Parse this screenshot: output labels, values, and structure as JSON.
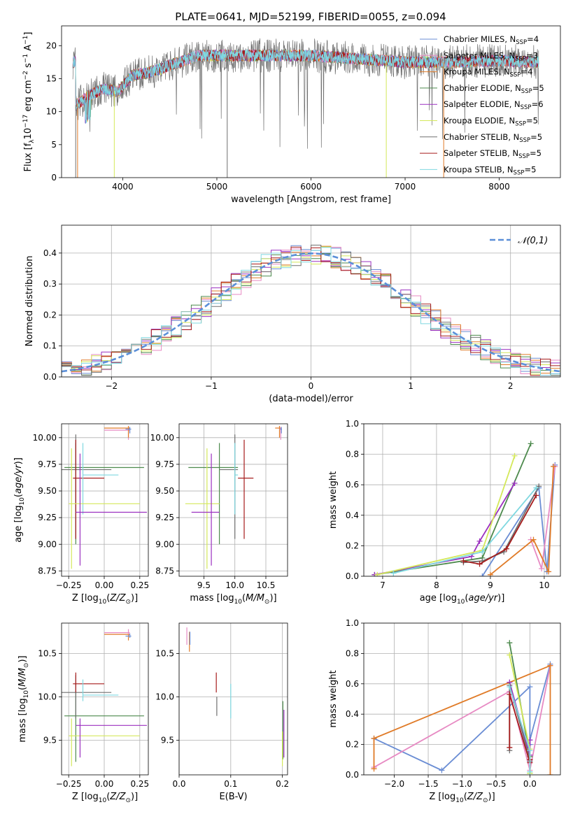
{
  "figure_title": "PLATE=0641, MJD=52199, FIBERID=0055, z=0.094",
  "colors": {
    "Chabrier MILES": "#6a8dd4",
    "Salpeter MILES": "#e78ac3",
    "Kroupa MILES": "#e07b28",
    "Chabrier ELODIE": "#4d8a4d",
    "Salpeter ELODIE": "#9b30c0",
    "Kroupa ELODIE": "#d4e85a",
    "Chabrier STELIB": "#707070",
    "Salpeter STELIB": "#a61c1c",
    "Kroupa STELIB": "#7fd8e0"
  },
  "chart_data": [
    {
      "id": "spectrum",
      "type": "line",
      "xlabel": "wavelength [Angstrom, rest frame]",
      "ylabel": "Flux [f_λ 10^-17 erg cm^-2 s^-1 A^-1]",
      "xlim": [
        3350,
        8650
      ],
      "ylim": [
        0,
        23
      ],
      "xticks": [
        4000,
        5000,
        6000,
        7000,
        8000
      ],
      "yticks": [
        0,
        5,
        10,
        15,
        20
      ],
      "legend_position": "right",
      "legend": [
        {
          "prefix": "Chabrier MILES, N",
          "sub": "SSP",
          "suffix": "=4"
        },
        {
          "prefix": "Salpeter MILES, N",
          "sub": "SSP",
          "suffix": "=3"
        },
        {
          "prefix": "Kroupa MILES, N",
          "sub": "SSP",
          "suffix": "=4"
        },
        {
          "prefix": "Chabrier ELODIE, N",
          "sub": "SSP",
          "suffix": "=5"
        },
        {
          "prefix": "Salpeter ELODIE, N",
          "sub": "SSP",
          "suffix": "=6"
        },
        {
          "prefix": "Kroupa ELODIE, N",
          "sub": "SSP",
          "suffix": "=5"
        },
        {
          "prefix": "Chabrier STELIB, N",
          "sub": "SSP",
          "suffix": "=5"
        },
        {
          "prefix": "Salpeter STELIB, N",
          "sub": "SSP",
          "suffix": "=5"
        },
        {
          "prefix": "Kroupa STELIB, N",
          "sub": "SSP",
          "suffix": "=5"
        }
      ],
      "continuum": [
        [
          3500,
          11
        ],
        [
          3650,
          12.5
        ],
        [
          3800,
          13.5
        ],
        [
          3950,
          13
        ],
        [
          4100,
          15.5
        ],
        [
          4300,
          16
        ],
        [
          4500,
          17
        ],
        [
          4800,
          18.5
        ],
        [
          5100,
          18.5
        ],
        [
          5500,
          18.5
        ],
        [
          6000,
          18.5
        ],
        [
          6500,
          18
        ],
        [
          7000,
          17.5
        ],
        [
          7500,
          17.5
        ],
        [
          8000,
          17.8
        ],
        [
          8300,
          17.5
        ]
      ]
    },
    {
      "id": "residuals",
      "type": "line",
      "xlabel": "(data-model)/error",
      "ylabel": "Normed distribution",
      "xlim": [
        -2.5,
        2.5
      ],
      "ylim": [
        0,
        0.49
      ],
      "xticks": [
        -2,
        -1,
        0,
        1,
        2
      ],
      "yticks": [
        0.0,
        0.1,
        0.2,
        0.3,
        0.4
      ],
      "grid": true,
      "legend_position": "top-right",
      "reference_curve": "𝒩(0,1)"
    },
    {
      "id": "age_vs_Z",
      "type": "scatter",
      "xlabel": "Z [log10(Z/Z☉)]",
      "ylabel": "age [log10(age/yr)]",
      "xlim": [
        -0.3,
        0.31
      ],
      "ylim": [
        8.7,
        10.13
      ],
      "xticks": [
        -0.25,
        0.0,
        0.25
      ],
      "yticks": [
        8.75,
        9.0,
        9.25,
        9.5,
        9.75,
        10.0
      ],
      "points": [
        {
          "s": "Salpeter MILES",
          "x": 0.17,
          "y": 10.07,
          "xe": [
            0.0,
            0.18
          ],
          "ye": [
            9.98,
            10.1
          ]
        },
        {
          "s": "Kroupa MILES",
          "x": 0.17,
          "y": 10.09,
          "xe": [
            0.0,
            0.18
          ],
          "ye": [
            10.0,
            10.11
          ]
        },
        {
          "s": "Chabrier MILES",
          "x": 0.18,
          "y": 10.08,
          "xe": [
            0.15,
            0.19
          ],
          "ye": [
            10.04,
            10.1
          ]
        },
        {
          "s": "Chabrier ELODIE",
          "x": -0.2,
          "y": 9.72,
          "xe": [
            -0.28,
            0.28
          ],
          "ye": [
            9.0,
            9.95
          ]
        },
        {
          "s": "Chabrier STELIB",
          "x": -0.2,
          "y": 9.7,
          "xe": [
            -0.3,
            0.05
          ],
          "ye": [
            9.05,
            10.03
          ]
        },
        {
          "s": "Salpeter STELIB",
          "x": -0.2,
          "y": 9.62,
          "xe": [
            -0.22,
            0.0
          ],
          "ye": [
            9.05,
            9.98
          ]
        },
        {
          "s": "Kroupa STELIB",
          "x": -0.15,
          "y": 9.65,
          "xe": [
            -0.15,
            0.1
          ],
          "ye": [
            9.28,
            9.95
          ]
        },
        {
          "s": "Kroupa ELODIE",
          "x": -0.23,
          "y": 9.38,
          "xe": [
            -0.25,
            0.25
          ],
          "ye": [
            8.77,
            9.9
          ]
        },
        {
          "s": "Salpeter ELODIE",
          "x": -0.17,
          "y": 9.3,
          "xe": [
            -0.2,
            0.3
          ],
          "ye": [
            8.8,
            9.85
          ]
        }
      ]
    },
    {
      "id": "age_vs_mass",
      "type": "scatter",
      "xlabel": "mass [log10(M/M☉)]",
      "ylabel": "",
      "xlim": [
        9.1,
        10.85
      ],
      "ylim": [
        8.7,
        10.13
      ],
      "xticks": [
        9.5,
        10.0,
        10.5
      ],
      "yticks": [
        8.75,
        9.0,
        9.25,
        9.5,
        9.75,
        10.0
      ],
      "points": [
        {
          "s": "Kroupa MILES",
          "x": 10.72,
          "y": 10.09,
          "xe": [
            10.65,
            10.75
          ],
          "ye": [
            10.0,
            10.11
          ]
        },
        {
          "s": "Salpeter MILES",
          "x": 10.74,
          "y": 10.08,
          "xe": [
            10.72,
            10.75
          ],
          "ye": [
            9.98,
            10.1
          ]
        },
        {
          "s": "Chabrier MILES",
          "x": 10.75,
          "y": 10.08,
          "xe": [
            10.73,
            10.76
          ],
          "ye": [
            10.04,
            10.1
          ]
        },
        {
          "s": "Chabrier ELODIE",
          "x": 9.75,
          "y": 9.72,
          "xe": [
            9.25,
            10.05
          ],
          "ye": [
            9.0,
            9.95
          ]
        },
        {
          "s": "Chabrier STELIB",
          "x": 10.0,
          "y": 9.7,
          "xe": [
            9.75,
            10.05
          ],
          "ye": [
            9.05,
            10.03
          ]
        },
        {
          "s": "Salpeter STELIB",
          "x": 10.15,
          "y": 9.62,
          "xe": [
            10.05,
            10.3
          ],
          "ye": [
            9.05,
            9.98
          ]
        },
        {
          "s": "Kroupa STELIB",
          "x": 10.0,
          "y": 9.65,
          "xe": [
            10.0,
            10.05
          ],
          "ye": [
            9.28,
            9.95
          ]
        },
        {
          "s": "Kroupa ELODIE",
          "x": 9.55,
          "y": 9.38,
          "xe": [
            9.2,
            9.75
          ],
          "ye": [
            8.77,
            9.9
          ]
        },
        {
          "s": "Salpeter ELODIE",
          "x": 9.62,
          "y": 9.3,
          "xe": [
            9.3,
            9.75
          ],
          "ye": [
            8.8,
            9.85
          ]
        }
      ]
    },
    {
      "id": "weight_vs_age",
      "type": "line",
      "xlabel": "age [log10(age/yr)]",
      "ylabel": "mass weight",
      "xlim": [
        6.65,
        10.3
      ],
      "ylim": [
        0,
        1.0
      ],
      "xticks": [
        7,
        8,
        9,
        10
      ],
      "yticks": [
        0.0,
        0.2,
        0.4,
        0.6,
        0.8,
        1.0
      ],
      "series": [
        {
          "s": "Chabrier MILES",
          "points": [
            [
              8.85,
              0.0
            ],
            [
              9.9,
              0.58
            ],
            [
              10.05,
              0.03
            ],
            [
              10.2,
              0.73
            ]
          ]
        },
        {
          "s": "Salpeter MILES",
          "points": [
            [
              9.75,
              0.24
            ],
            [
              9.95,
              0.05
            ],
            [
              10.2,
              0.72
            ]
          ]
        },
        {
          "s": "Kroupa MILES",
          "points": [
            [
              9.0,
              0.01
            ],
            [
              9.8,
              0.24
            ],
            [
              10.08,
              0.03
            ],
            [
              10.17,
              0.72
            ]
          ]
        },
        {
          "s": "Chabrier ELODIE",
          "points": [
            [
              6.85,
              0.01
            ],
            [
              8.85,
              0.12
            ],
            [
              9.75,
              0.87
            ]
          ]
        },
        {
          "s": "Salpeter ELODIE",
          "points": [
            [
              6.85,
              0.01
            ],
            [
              8.65,
              0.13
            ],
            [
              8.8,
              0.23
            ],
            [
              9.45,
              0.61
            ]
          ]
        },
        {
          "s": "Kroupa ELODIE",
          "points": [
            [
              6.9,
              0.01
            ],
            [
              8.85,
              0.17
            ],
            [
              9.45,
              0.79
            ]
          ]
        },
        {
          "s": "Chabrier STELIB",
          "points": [
            [
              8.5,
              0.09
            ],
            [
              8.85,
              0.1
            ],
            [
              9.25,
              0.16
            ],
            [
              9.9,
              0.59
            ]
          ]
        },
        {
          "s": "Salpeter STELIB",
          "points": [
            [
              8.5,
              0.1
            ],
            [
              8.8,
              0.08
            ],
            [
              9.3,
              0.18
            ],
            [
              9.85,
              0.53
            ]
          ]
        },
        {
          "s": "Kroupa STELIB",
          "points": [
            [
              7.2,
              0.02
            ],
            [
              8.85,
              0.16
            ],
            [
              9.85,
              0.58
            ]
          ]
        }
      ]
    },
    {
      "id": "mass_vs_Z",
      "type": "scatter",
      "xlabel": "Z [log10(Z/Z☉)]",
      "ylabel": "mass [log10(M/M☉)]",
      "xlim": [
        -0.3,
        0.31
      ],
      "ylim": [
        9.1,
        10.85
      ],
      "xticks": [
        -0.25,
        0.0,
        0.25
      ],
      "yticks": [
        9.5,
        10.0,
        10.5
      ],
      "points": [
        {
          "s": "Kroupa MILES",
          "x": 0.17,
          "y": 10.72,
          "xe": [
            0.0,
            0.18
          ],
          "ye": [
            10.65,
            10.75
          ]
        },
        {
          "s": "Salpeter MILES",
          "x": 0.17,
          "y": 10.74,
          "xe": [
            0.0,
            0.18
          ],
          "ye": [
            10.72,
            10.78
          ]
        },
        {
          "s": "Chabrier MILES",
          "x": 0.18,
          "y": 10.7,
          "xe": [
            0.15,
            0.19
          ],
          "ye": [
            10.68,
            10.73
          ]
        },
        {
          "s": "Chabrier ELODIE",
          "x": -0.2,
          "y": 9.78,
          "xe": [
            -0.28,
            0.28
          ],
          "ye": [
            9.25,
            10.05
          ]
        },
        {
          "s": "Chabrier STELIB",
          "x": -0.2,
          "y": 10.05,
          "xe": [
            -0.3,
            0.05
          ],
          "ye": [
            9.75,
            10.25
          ]
        },
        {
          "s": "Salpeter STELIB",
          "x": -0.2,
          "y": 10.15,
          "xe": [
            -0.22,
            0.0
          ],
          "ye": [
            10.05,
            10.28
          ]
        },
        {
          "s": "Kroupa STELIB",
          "x": -0.15,
          "y": 10.02,
          "xe": [
            -0.15,
            0.1
          ],
          "ye": [
            9.95,
            10.2
          ]
        },
        {
          "s": "Kroupa ELODIE",
          "x": -0.23,
          "y": 9.55,
          "xe": [
            -0.25,
            0.25
          ],
          "ye": [
            9.2,
            9.75
          ]
        },
        {
          "s": "Salpeter ELODIE",
          "x": -0.17,
          "y": 9.67,
          "xe": [
            -0.2,
            0.3
          ],
          "ye": [
            9.3,
            9.75
          ]
        }
      ]
    },
    {
      "id": "mass_vs_EBV",
      "type": "scatter",
      "xlabel": "E(B-V)",
      "ylabel": "",
      "xlim": [
        0.0,
        0.21
      ],
      "ylim": [
        9.1,
        10.85
      ],
      "xticks": [
        0.0,
        0.1,
        0.2
      ],
      "yticks": [
        9.5,
        10.0,
        10.5
      ],
      "points": [
        {
          "s": "Salpeter MILES",
          "x": 0.015,
          "ye": [
            10.6,
            10.8
          ]
        },
        {
          "s": "Kroupa MILES",
          "x": 0.02,
          "ye": [
            10.52,
            10.75
          ]
        },
        {
          "s": "Chabrier MILES",
          "x": 0.021,
          "ye": [
            10.6,
            10.75
          ]
        },
        {
          "s": "Salpeter STELIB",
          "x": 0.072,
          "ye": [
            10.05,
            10.28
          ]
        },
        {
          "s": "Chabrier STELIB",
          "x": 0.073,
          "ye": [
            9.78,
            10.0
          ]
        },
        {
          "s": "Kroupa STELIB",
          "x": 0.1,
          "ye": [
            9.75,
            10.15
          ]
        },
        {
          "s": "Chabrier ELODIE",
          "x": 0.201,
          "ye": [
            9.28,
            9.95
          ]
        },
        {
          "s": "Salpeter ELODIE",
          "x": 0.203,
          "ye": [
            9.3,
            9.85
          ]
        },
        {
          "s": "Kroupa ELODIE",
          "x": 0.2,
          "ye": [
            9.2,
            9.6
          ]
        }
      ]
    },
    {
      "id": "weight_vs_Z",
      "type": "line",
      "xlabel": "Z [log10(Z/Z☉)]",
      "ylabel": "mass weight",
      "xlim": [
        -2.45,
        0.45
      ],
      "ylim": [
        0,
        1.0
      ],
      "xticks": [
        -2.0,
        -1.5,
        -1.0,
        -0.5,
        0.0
      ],
      "yticks": [
        0.0,
        0.2,
        0.4,
        0.6,
        0.8,
        1.0
      ],
      "series": [
        {
          "s": "Chabrier MILES",
          "points": [
            [
              -2.3,
              0.24
            ],
            [
              -1.3,
              0.03
            ],
            [
              0.0,
              0.58
            ],
            [
              0.0,
              0.1
            ],
            [
              0.0,
              0.2
            ],
            [
              0.0,
              0.23
            ],
            [
              0.3,
              0.73
            ]
          ]
        },
        {
          "s": "Salpeter MILES",
          "points": [
            [
              -2.3,
              0.05
            ],
            [
              -0.3,
              0.55
            ],
            [
              0.0,
              0.03
            ],
            [
              0.3,
              0.72
            ]
          ]
        },
        {
          "s": "Kroupa MILES",
          "points": [
            [
              -2.3,
              0.04
            ],
            [
              -2.3,
              0.24
            ],
            [
              0.3,
              0.72
            ],
            [
              0.3,
              0.0
            ]
          ]
        },
        {
          "s": "Chabrier ELODIE",
          "points": [
            [
              -0.3,
              0.87
            ],
            [
              0.0,
              0.12
            ],
            [
              0.0,
              0.01
            ]
          ]
        },
        {
          "s": "Salpeter ELODIE",
          "points": [
            [
              -0.3,
              0.61
            ],
            [
              0.0,
              0.13
            ],
            [
              0.0,
              0.23
            ]
          ]
        },
        {
          "s": "Kroupa ELODIE",
          "points": [
            [
              -0.3,
              0.79
            ],
            [
              0.0,
              0.17
            ],
            [
              0.0,
              0.01
            ]
          ]
        },
        {
          "s": "Chabrier STELIB",
          "points": [
            [
              -0.3,
              0.16
            ],
            [
              -0.3,
              0.59
            ],
            [
              0.0,
              0.1
            ],
            [
              0.0,
              0.09
            ]
          ]
        },
        {
          "s": "Salpeter STELIB",
          "points": [
            [
              -0.3,
              0.18
            ],
            [
              -0.3,
              0.53
            ],
            [
              0.0,
              0.08
            ],
            [
              0.0,
              0.1
            ]
          ]
        },
        {
          "s": "Kroupa STELIB",
          "points": [
            [
              -0.3,
              0.58
            ],
            [
              0.0,
              0.16
            ],
            [
              0.0,
              0.02
            ]
          ]
        }
      ]
    }
  ]
}
